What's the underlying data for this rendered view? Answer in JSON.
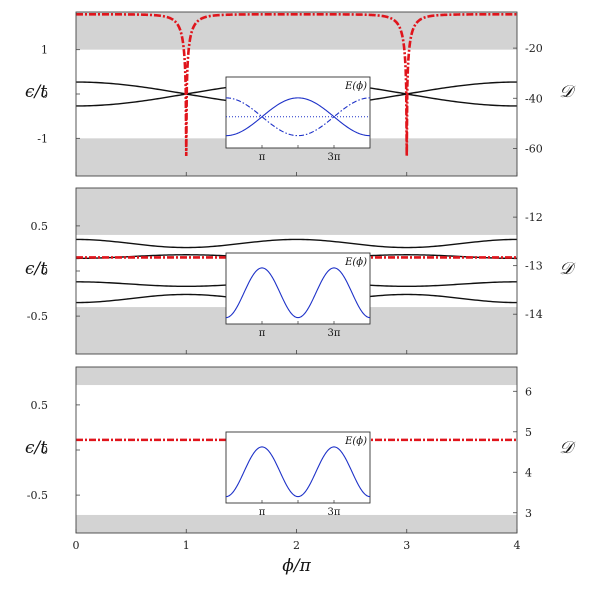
{
  "chart_data": [
    {
      "type": "line",
      "panel": "top",
      "ylabel_left": "ϵ/t",
      "ylabel_right": "𝒟",
      "xlim": [
        0,
        4
      ],
      "ylim_left": [
        -1.85,
        1.85
      ],
      "ylim_right": [
        -71,
        -5.6
      ],
      "left_ticks": [
        {
          "v": 1,
          "label": "1"
        },
        {
          "v": 0,
          "label": "0"
        },
        {
          "v": -1,
          "label": "-1"
        }
      ],
      "right_ticks": [
        {
          "v": -20,
          "label": "-20"
        },
        {
          "v": -40,
          "label": "-40"
        },
        {
          "v": -60,
          "label": "-60"
        }
      ],
      "grey_bands": [
        [
          1.0,
          1.85
        ],
        [
          -1.85,
          -1.0
        ]
      ],
      "band_series": [
        {
          "name": "",
          "amp": 0.27,
          "sign": 1
        },
        {
          "name": "",
          "amp": 0.27,
          "sign": -1
        }
      ],
      "dashed_series": {
        "name": "",
        "axis": "right",
        "baseline": -6.5,
        "dip_positions": [
          1,
          3
        ],
        "dip_min": -63
      },
      "inset": {
        "label": "E(ϕ)",
        "xticks": [
          {
            "v": 1,
            "label": "π"
          },
          {
            "v": 3,
            "label": "3π"
          }
        ],
        "curves": [
          {
            "name": "",
            "style": "solid",
            "shape": "cos2",
            "amp": 0.75,
            "sign": 1
          },
          {
            "name": "",
            "style": "dashdot",
            "shape": "cos2",
            "amp": 0.75,
            "sign": -1
          },
          {
            "name": "",
            "style": "dotted",
            "shape": "flat",
            "amp": 0.0,
            "sign": 1
          }
        ]
      }
    },
    {
      "type": "line",
      "panel": "middle",
      "ylabel_left": "ϵ/t",
      "ylabel_right": "𝒟",
      "xlim": [
        0,
        4
      ],
      "ylim_left": [
        -0.92,
        0.92
      ],
      "ylim_right": [
        -14.82,
        -11.4
      ],
      "left_ticks": [
        {
          "v": 0.5,
          "label": "0.5"
        },
        {
          "v": 0,
          "label": "0"
        },
        {
          "v": -0.5,
          "label": "-0.5"
        }
      ],
      "right_ticks": [
        {
          "v": -12,
          "label": "-12"
        },
        {
          "v": -13,
          "label": "-13"
        },
        {
          "v": -14,
          "label": "-14"
        }
      ],
      "grey_bands": [
        [
          0.4,
          0.92
        ],
        [
          -0.92,
          -0.4
        ]
      ],
      "band_series": [
        {
          "name": "",
          "kind": "upper",
          "values_at": {
            "0": 0.35,
            "1": 0.26,
            "2": 0.35,
            "3": 0.26,
            "4": 0.35
          }
        },
        {
          "name": "",
          "kind": "upper",
          "values_at": {
            "0": 0.14,
            "1": 0.18,
            "2": 0.14,
            "3": 0.18,
            "4": 0.14
          }
        },
        {
          "name": "",
          "kind": "lower",
          "values_at": {
            "0": -0.12,
            "1": -0.17,
            "2": -0.12,
            "3": -0.17,
            "4": -0.12
          }
        },
        {
          "name": "",
          "kind": "lower",
          "values_at": {
            "0": -0.35,
            "1": -0.26,
            "2": -0.35,
            "3": -0.26,
            "4": -0.35
          }
        }
      ],
      "dashed_series": {
        "name": "",
        "axis": "right",
        "baseline": -12.83,
        "dip_positions": [],
        "dip_min": -12.83
      },
      "inset": {
        "label": "E(ϕ)",
        "xticks": [
          {
            "v": 1,
            "label": "π"
          },
          {
            "v": 3,
            "label": "3π"
          }
        ],
        "curves": [
          {
            "name": "",
            "style": "solid",
            "shape": "cos4",
            "amp": 0.85,
            "sign": 1
          }
        ]
      }
    },
    {
      "type": "line",
      "panel": "bottom",
      "ylabel_left": "ϵ/t",
      "ylabel_right": "𝒟",
      "xlabel": "ϕ/π",
      "xlim": [
        0,
        4
      ],
      "xticks": [
        {
          "v": 0,
          "label": "0"
        },
        {
          "v": 1,
          "label": "1"
        },
        {
          "v": 2,
          "label": "2"
        },
        {
          "v": 3,
          "label": "3"
        },
        {
          "v": 4,
          "label": "4"
        }
      ],
      "ylim_left": [
        -0.92,
        0.92
      ],
      "ylim_right": [
        2.5,
        6.6
      ],
      "left_ticks": [
        {
          "v": 0.5,
          "label": "0.5"
        },
        {
          "v": 0,
          "label": "0"
        },
        {
          "v": -0.5,
          "label": "-0.5"
        }
      ],
      "right_ticks": [
        {
          "v": 6,
          "label": "6"
        },
        {
          "v": 5,
          "label": "5"
        },
        {
          "v": 4,
          "label": "4"
        },
        {
          "v": 3,
          "label": "3"
        }
      ],
      "grey_bands": [
        [
          0.72,
          0.92
        ],
        [
          -0.92,
          -0.72
        ]
      ],
      "band_series": [],
      "dashed_series": {
        "name": "",
        "axis": "right",
        "baseline": 4.8,
        "dip_positions": [],
        "dip_min": 4.8
      },
      "inset": {
        "label": "E(ϕ)",
        "xticks": [
          {
            "v": 1,
            "label": "π"
          },
          {
            "v": 3,
            "label": "3π"
          }
        ],
        "curves": [
          {
            "name": "",
            "style": "solid",
            "shape": "cos4",
            "amp": 0.85,
            "sign": 1
          }
        ]
      }
    }
  ],
  "colors": {
    "band": "#d3d3d3",
    "dashed": "#e0151c",
    "black_curves": "#111111",
    "inset_curves": "#1e32c8"
  }
}
